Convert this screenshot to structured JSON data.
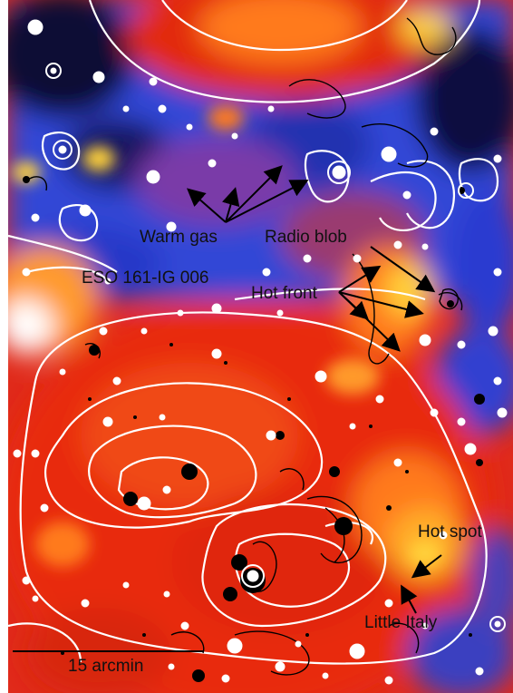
{
  "figure": {
    "labels": {
      "warm_gas": "Warm gas",
      "radio_blob": "Radio blob",
      "eso": "ESO 161-IG 006",
      "hot_front": "Hot front",
      "hot_spot": "Hot spot",
      "little_italy": "Little Italy",
      "scale": "15 arcmin"
    },
    "colors": {
      "cold": "#0a0a3a",
      "blue": "#2a3ad0",
      "purple": "#7a3aa8",
      "red": "#e82a10",
      "orange": "#ff7a1a",
      "yellow": "#ffd23a",
      "white": "#ffffff"
    }
  }
}
